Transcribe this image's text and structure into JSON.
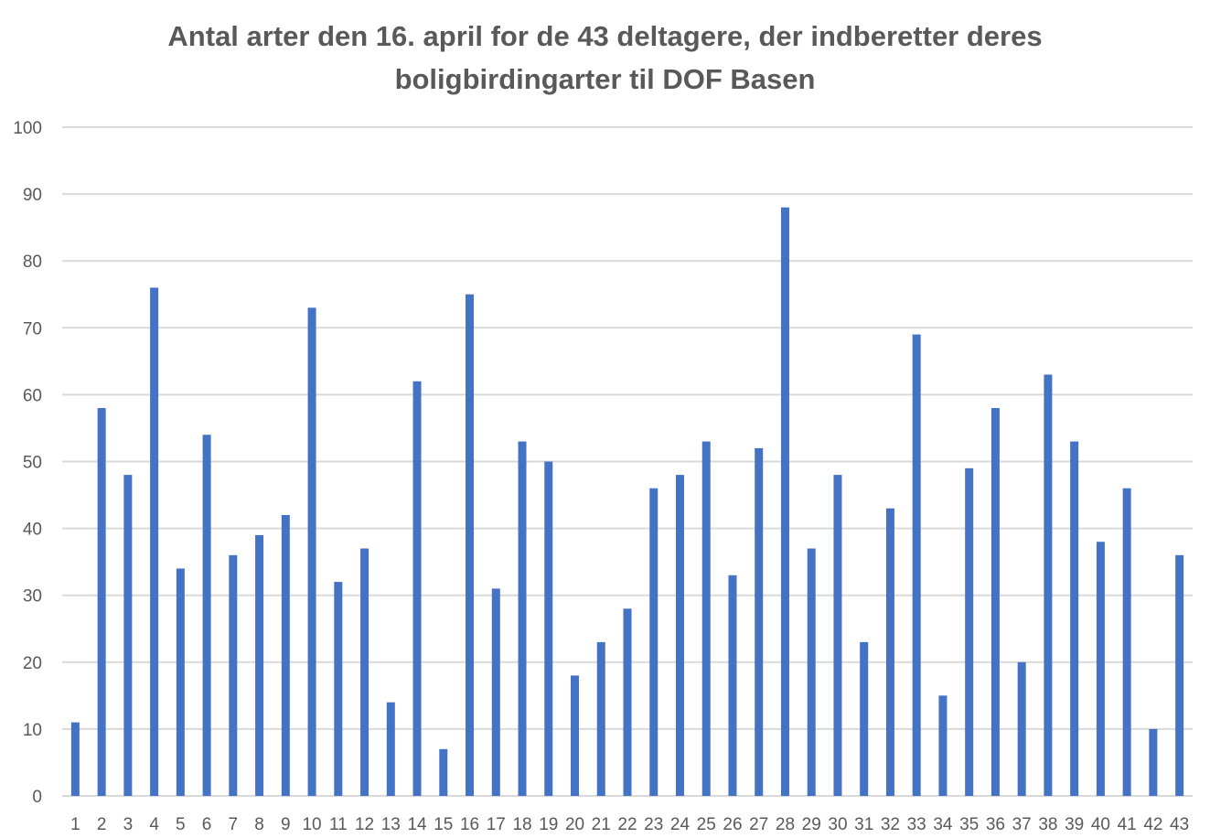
{
  "chart_data": {
    "type": "bar",
    "title_lines": [
      "Antal arter den 16. april for de 43 deltagere, der indberetter deres",
      "boligbirdingarter til DOF Basen"
    ],
    "categories": [
      "1",
      "2",
      "3",
      "4",
      "5",
      "6",
      "7",
      "8",
      "9",
      "10",
      "11",
      "12",
      "13",
      "14",
      "15",
      "16",
      "17",
      "18",
      "19",
      "20",
      "21",
      "22",
      "23",
      "24",
      "25",
      "26",
      "27",
      "28",
      "29",
      "30",
      "31",
      "32",
      "33",
      "34",
      "35",
      "36",
      "37",
      "38",
      "39",
      "40",
      "41",
      "42",
      "43"
    ],
    "values": [
      11,
      58,
      48,
      76,
      34,
      54,
      36,
      39,
      42,
      73,
      32,
      37,
      14,
      62,
      7,
      75,
      31,
      53,
      50,
      18,
      23,
      28,
      46,
      48,
      53,
      33,
      52,
      88,
      37,
      48,
      23,
      43,
      69,
      15,
      49,
      58,
      20,
      63,
      53,
      38,
      46,
      10,
      36
    ],
    "ylim": [
      0,
      100
    ],
    "yticks": [
      0,
      10,
      20,
      30,
      40,
      50,
      60,
      70,
      80,
      90,
      100
    ],
    "grid": true,
    "legend": "none",
    "bar_color": "#4472C4",
    "grid_color": "#D9D9D9"
  }
}
